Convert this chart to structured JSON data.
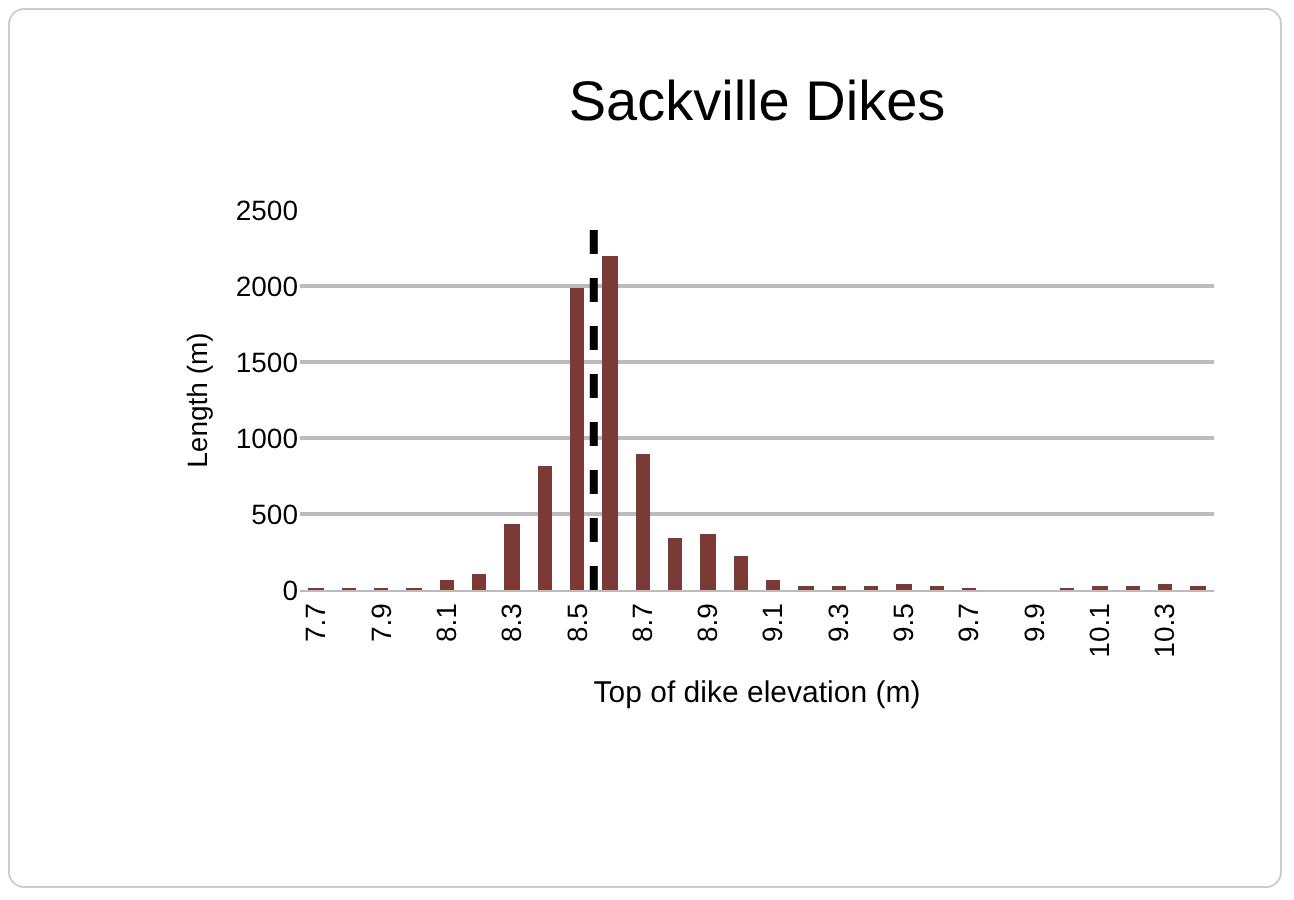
{
  "chart_data": {
    "type": "bar",
    "title": "Sackville Dikes",
    "xlabel": "Top of dike elevation (m)",
    "ylabel": "Length (m)",
    "x": [
      7.7,
      7.8,
      7.9,
      8.0,
      8.1,
      8.2,
      8.3,
      8.4,
      8.5,
      8.6,
      8.7,
      8.8,
      8.9,
      9.0,
      9.1,
      9.2,
      9.3,
      9.4,
      9.5,
      9.6,
      9.7,
      9.8,
      9.9,
      10.0,
      10.1,
      10.2,
      10.3,
      10.4
    ],
    "values": [
      5,
      5,
      10,
      10,
      70,
      100,
      440,
      820,
      1990,
      2200,
      890,
      340,
      370,
      220,
      60,
      30,
      30,
      25,
      45,
      15,
      5,
      0,
      0,
      5,
      20,
      25,
      35,
      25
    ],
    "color": "#7b3a35",
    "xlim": [
      7.65,
      10.45
    ],
    "xticks": [
      7.7,
      7.9,
      8.1,
      8.3,
      8.5,
      8.7,
      8.9,
      9.1,
      9.3,
      9.5,
      9.7,
      9.9,
      10.1,
      10.3
    ],
    "ylim": [
      0,
      2500
    ],
    "yticks": [
      0,
      500,
      1000,
      1500,
      2000,
      2500
    ],
    "grid": "y",
    "ref_lines": [
      {
        "axis": "x",
        "value": 8.55,
        "color": "#000000",
        "line_style": "dashed"
      }
    ]
  }
}
